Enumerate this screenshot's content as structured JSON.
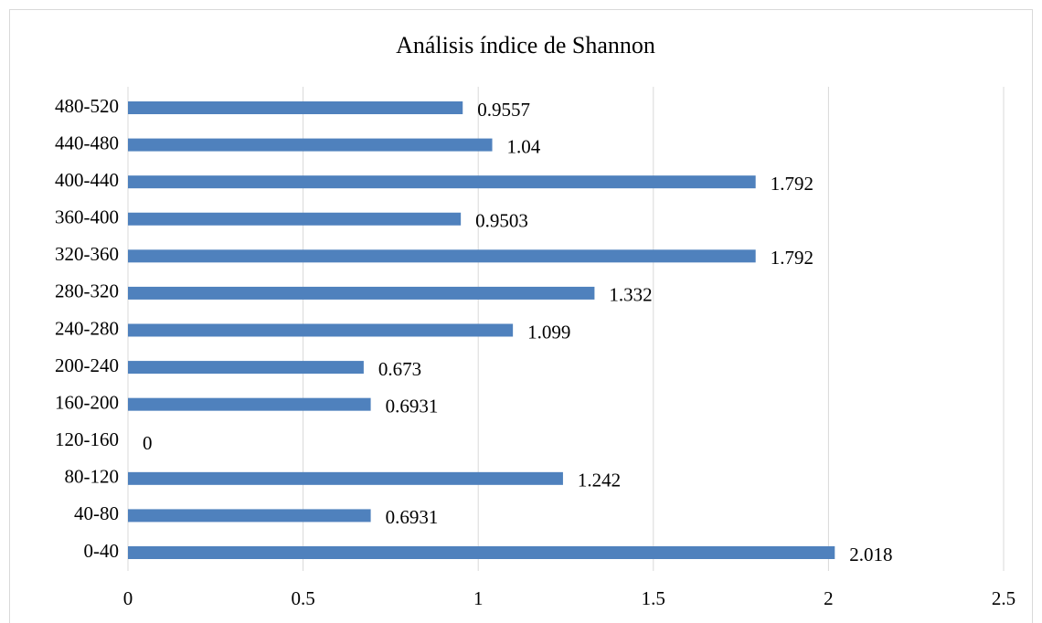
{
  "chart_data": {
    "type": "bar",
    "title": "Análisis índice de Shannon",
    "categories": [
      "0-40",
      "40-80",
      "80-120",
      "120-160",
      "160-200",
      "200-240",
      "240-280",
      "280-320",
      "320-360",
      "360-400",
      "400-440",
      "440-480",
      "480-520"
    ],
    "values": [
      2.018,
      0.6931,
      1.242,
      0,
      0.6931,
      0.673,
      1.099,
      1.332,
      1.792,
      0.9503,
      1.792,
      1.04,
      0.9557
    ],
    "color": "#4f81bd",
    "xlim": [
      0,
      2.5
    ],
    "xticks": [
      0,
      0.5,
      1,
      1.5,
      2,
      2.5
    ],
    "grid": true
  }
}
